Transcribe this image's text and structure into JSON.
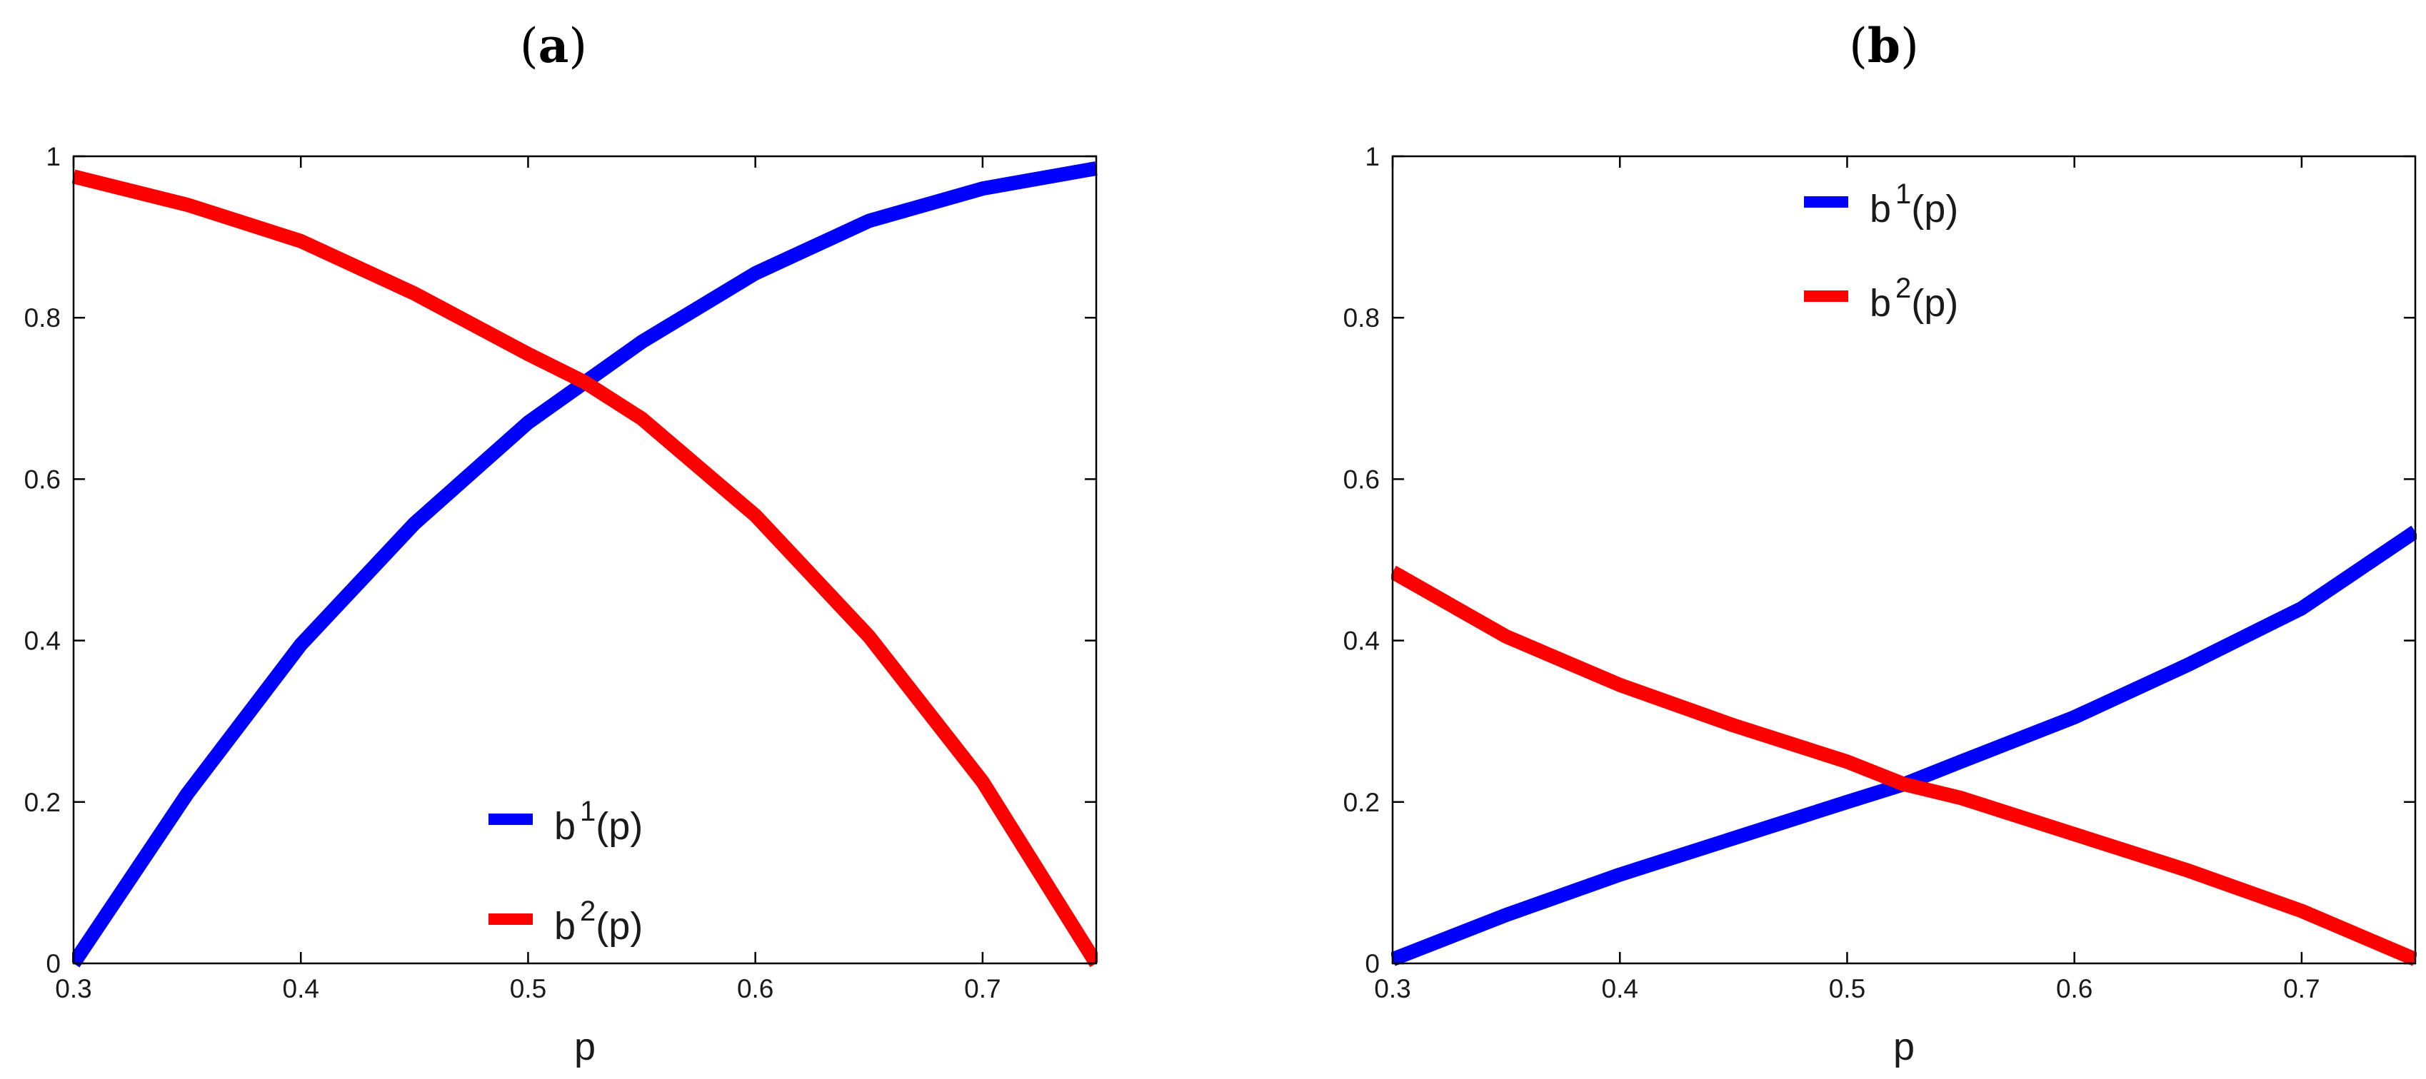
{
  "chart_data": [
    {
      "type": "line",
      "panel_label": "a",
      "xlabel": "p",
      "ylabel": "",
      "xlim": [
        0.3,
        0.75
      ],
      "ylim": [
        0,
        1
      ],
      "xticks": [
        0.3,
        0.4,
        0.5,
        0.6,
        0.7
      ],
      "xtick_labels": [
        "0.3",
        "0.4",
        "0.5",
        "0.6",
        "0.7"
      ],
      "yticks": [
        0,
        0.2,
        0.4,
        0.6,
        0.8,
        1
      ],
      "ytick_labels": [
        "0",
        "0.2",
        "0.4",
        "0.6",
        "0.8",
        "1"
      ],
      "grid": false,
      "legend_position": "bottom-center",
      "series": [
        {
          "name": "b1(p)",
          "legend_base": "b",
          "legend_sup": "1",
          "legend_tail": "(p)",
          "color": "#0000ff",
          "x": [
            0.3,
            0.35,
            0.4,
            0.45,
            0.5,
            0.525,
            0.55,
            0.6,
            0.65,
            0.7,
            0.75
          ],
          "y": [
            0.0,
            0.21,
            0.395,
            0.545,
            0.67,
            0.72,
            0.77,
            0.855,
            0.92,
            0.96,
            0.985
          ]
        },
        {
          "name": "b2(p)",
          "legend_base": "b",
          "legend_sup": "2",
          "legend_tail": "(p)",
          "color": "#ff0000",
          "x": [
            0.3,
            0.35,
            0.4,
            0.45,
            0.5,
            0.525,
            0.55,
            0.6,
            0.65,
            0.7,
            0.75
          ],
          "y": [
            0.975,
            0.94,
            0.895,
            0.83,
            0.755,
            0.72,
            0.675,
            0.555,
            0.405,
            0.225,
            0.0
          ]
        }
      ]
    },
    {
      "type": "line",
      "panel_label": "b",
      "xlabel": "p",
      "ylabel": "",
      "xlim": [
        0.3,
        0.75
      ],
      "ylim": [
        0,
        1
      ],
      "xticks": [
        0.3,
        0.4,
        0.5,
        0.6,
        0.7
      ],
      "xtick_labels": [
        "0.3",
        "0.4",
        "0.5",
        "0.6",
        "0.7"
      ],
      "yticks": [
        0,
        0.2,
        0.4,
        0.6,
        0.8,
        1
      ],
      "ytick_labels": [
        "0",
        "0.2",
        "0.4",
        "0.6",
        "0.8",
        "1"
      ],
      "grid": false,
      "legend_position": "top-center",
      "series": [
        {
          "name": "b1(p)",
          "legend_base": "b",
          "legend_sup": "1",
          "legend_tail": "(p)",
          "color": "#0000ff",
          "x": [
            0.3,
            0.35,
            0.4,
            0.45,
            0.5,
            0.525,
            0.55,
            0.6,
            0.65,
            0.7,
            0.75
          ],
          "y": [
            0.005,
            0.06,
            0.11,
            0.155,
            0.2,
            0.222,
            0.25,
            0.305,
            0.37,
            0.44,
            0.535
          ]
        },
        {
          "name": "b2(p)",
          "legend_base": "b",
          "legend_sup": "2",
          "legend_tail": "(p)",
          "color": "#ff0000",
          "x": [
            0.3,
            0.35,
            0.4,
            0.45,
            0.5,
            0.525,
            0.55,
            0.6,
            0.65,
            0.7,
            0.75
          ],
          "y": [
            0.485,
            0.405,
            0.345,
            0.295,
            0.25,
            0.222,
            0.205,
            0.16,
            0.115,
            0.065,
            0.005
          ]
        }
      ]
    }
  ]
}
